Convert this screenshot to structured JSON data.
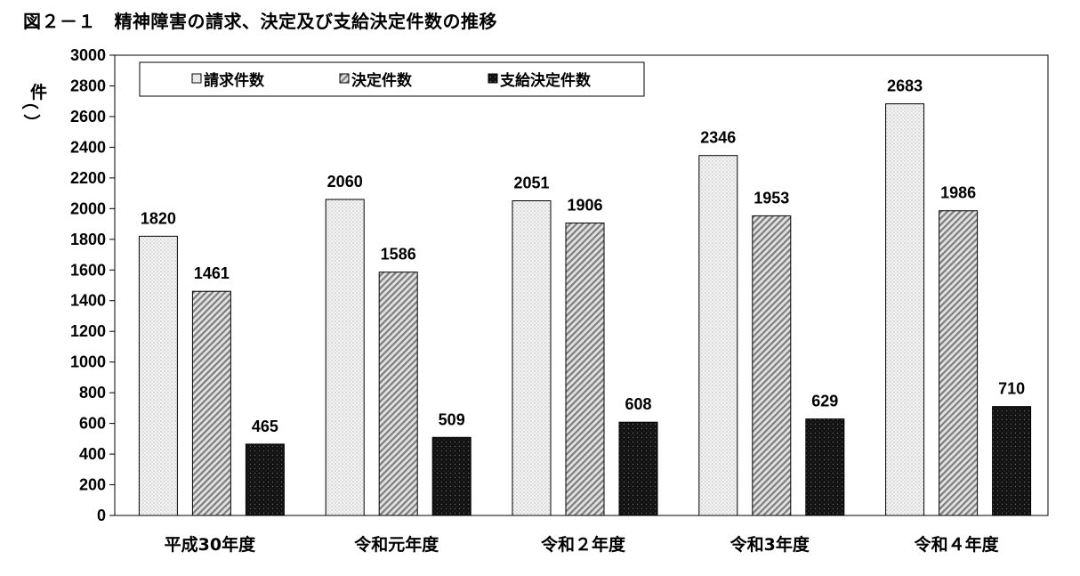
{
  "title": "図２－１　精神障害の請求、決定及び支給決定件数の推移",
  "chart_data": {
    "type": "bar",
    "title": "図２－１　精神障害の請求、決定及び支給決定件数の推移",
    "ylabel": "件",
    "xlabel": "",
    "ylim": [
      0,
      3000
    ],
    "ytick_step": 200,
    "yticks": [
      "0",
      "200",
      "400",
      "600",
      "800",
      "1000",
      "1200",
      "1400",
      "1600",
      "1800",
      "2000",
      "2200",
      "2400",
      "2600",
      "2800",
      "3000"
    ],
    "categories": [
      "平成30年度",
      "令和元年度",
      "令和2年度",
      "令和3年度",
      "令和4年度"
    ],
    "category_labels": [
      "平成30年度",
      "令和元年度",
      "令和２年度",
      "令和3年度",
      "令和４年度"
    ],
    "series": [
      {
        "name": "請求件数",
        "values": [
          1820,
          2060,
          2051,
          2346,
          2683
        ],
        "pattern": "dotted-light"
      },
      {
        "name": "決定件数",
        "values": [
          1461,
          1586,
          1906,
          1953,
          1986
        ],
        "pattern": "diagonal-gray"
      },
      {
        "name": "支給決定件数",
        "values": [
          465,
          509,
          608,
          629,
          710
        ],
        "pattern": "dotted-black"
      }
    ],
    "legend_position": "top-left",
    "grid": false,
    "data_labels": true
  }
}
